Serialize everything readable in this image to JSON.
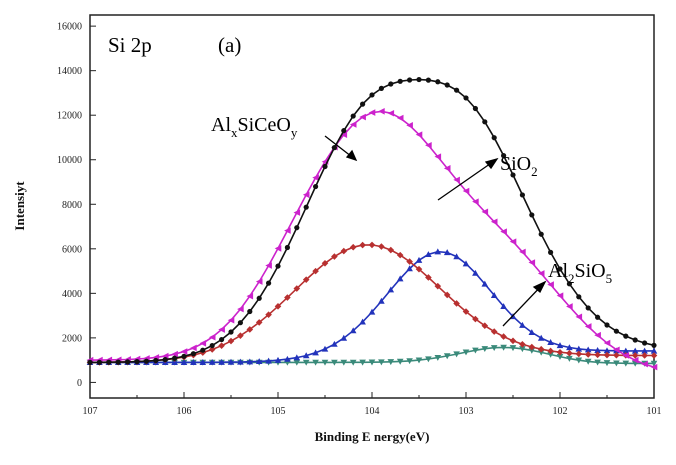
{
  "chart_data": {
    "type": "line",
    "title": "",
    "panel_title": "Si 2p",
    "panel_label": "(a)",
    "xlabel": "Binding E nergy(eV)",
    "ylabel": "Intensiyt",
    "xlim": [
      107,
      101
    ],
    "x_reversed": true,
    "ylim": [
      -700,
      16500
    ],
    "x_ticks": [
      107,
      106,
      105,
      104,
      103,
      102,
      101
    ],
    "y_ticks": [
      0,
      2000,
      4000,
      6000,
      8000,
      10000,
      12000,
      14000,
      16000
    ],
    "grid": false,
    "legend": "none",
    "x": [
      107.0,
      106.9,
      106.8,
      106.7,
      106.6,
      106.5,
      106.4,
      106.3,
      106.2,
      106.1,
      106.0,
      105.9,
      105.8,
      105.7,
      105.6,
      105.5,
      105.4,
      105.3,
      105.2,
      105.1,
      105.0,
      104.9,
      104.8,
      104.7,
      104.6,
      104.5,
      104.4,
      104.3,
      104.2,
      104.1,
      104.0,
      103.9,
      103.8,
      103.7,
      103.6,
      103.5,
      103.4,
      103.3,
      103.2,
      103.1,
      103.0,
      102.9,
      102.8,
      102.7,
      102.6,
      102.5,
      102.4,
      102.3,
      102.2,
      102.1,
      102.0,
      101.9,
      101.8,
      101.7,
      101.6,
      101.5,
      101.4,
      101.3,
      101.2,
      101.1,
      101.0
    ],
    "series": [
      {
        "key": "raw",
        "color": "#111111",
        "marker": "circle",
        "values": [
          900,
          903,
          907,
          912,
          921,
          934,
          954,
          983,
          1025,
          1086,
          1171,
          1289,
          1447,
          1656,
          1925,
          2264,
          2682,
          3185,
          3778,
          4460,
          5224,
          6059,
          6949,
          7870,
          8796,
          9697,
          10543,
          11306,
          11962,
          12497,
          12909,
          13205,
          13402,
          13521,
          13582,
          13600,
          13576,
          13501,
          13357,
          13123,
          12776,
          12302,
          11703,
          10989,
          10185,
          9317,
          8419,
          7522,
          6655,
          5840,
          5094,
          4427,
          3844,
          3344,
          2925,
          2579,
          2300,
          2078,
          1904,
          1769,
          1667
        ]
      },
      {
        "key": "fit",
        "color": "#cc22cc",
        "marker": "triangle-left",
        "values": [
          1000,
          1004,
          1010,
          1018,
          1030,
          1050,
          1080,
          1122,
          1183,
          1269,
          1387,
          1546,
          1758,
          2030,
          2374,
          2794,
          3294,
          3874,
          4529,
          5248,
          6017,
          6817,
          7627,
          8426,
          9194,
          9912,
          10562,
          11125,
          11583,
          11918,
          12117,
          12173,
          12088,
          11872,
          11544,
          11127,
          10650,
          10138,
          9614,
          9096,
          8596,
          8118,
          7660,
          7214,
          6771,
          6322,
          5860,
          5383,
          4892,
          4394,
          3896,
          3410,
          2945,
          2513,
          2120,
          1770,
          1467,
          1210,
          997,
          824,
          686
        ]
      },
      {
        "key": "AlxSiCeOy",
        "color": "#b83030",
        "marker": "diamond",
        "values": [
          900,
          902,
          906,
          913,
          922,
          935,
          955,
          982,
          1019,
          1070,
          1138,
          1226,
          1338,
          1479,
          1650,
          1857,
          2100,
          2379,
          2694,
          3042,
          3417,
          3811,
          4215,
          4615,
          4998,
          5349,
          5653,
          5898,
          6072,
          6166,
          6176,
          6101,
          5945,
          5716,
          5425,
          5086,
          4713,
          4323,
          3929,
          3545,
          3182,
          2846,
          2546,
          2282,
          2057,
          1868,
          1713,
          1589,
          1490,
          1413,
          1355,
          1311,
          1279,
          1256,
          1239,
          1228,
          1220,
          1215,
          1212,
          1210,
          1209
        ]
      },
      {
        "key": "SiO2",
        "color": "#2233bb",
        "marker": "triangle-up",
        "values": [
          900,
          900,
          900,
          900,
          900,
          900,
          900,
          900,
          900,
          901,
          901,
          902,
          903,
          905,
          907,
          912,
          918,
          928,
          943,
          965,
          998,
          1045,
          1113,
          1206,
          1333,
          1501,
          1718,
          1991,
          2324,
          2717,
          3164,
          3652,
          4160,
          4658,
          5113,
          5487,
          5748,
          5869,
          5836,
          5650,
          5330,
          4907,
          4421,
          3911,
          3415,
          2962,
          2569,
          2245,
          1990,
          1799,
          1661,
          1567,
          1504,
          1465,
          1441,
          1428,
          1420,
          1416,
          1414,
          1413,
          1413
        ]
      },
      {
        "key": "Al2SiO5",
        "color": "#3a8a7a",
        "marker": "triangle-down",
        "values": [
          900,
          900,
          900,
          900,
          900,
          900,
          900,
          900,
          900,
          900,
          900,
          900,
          900,
          900,
          900,
          900,
          900,
          900,
          900,
          900,
          900,
          900,
          900,
          900,
          900,
          900,
          900,
          901,
          902,
          904,
          908,
          914,
          925,
          942,
          967,
          1003,
          1052,
          1114,
          1189,
          1273,
          1361,
          1444,
          1512,
          1557,
          1572,
          1556,
          1509,
          1438,
          1349,
          1253,
          1158,
          1071,
          999,
          944,
          905,
          880,
          866,
          859,
          856,
          854,
          854
        ]
      }
    ]
  },
  "annotations": {
    "alx": {
      "main": "Al",
      "s1": "x",
      "mid": "SiCeO",
      "s2": "y"
    },
    "sio2": {
      "main": "SiO",
      "s1": "2"
    },
    "al2sio5": {
      "main": "Al",
      "s1": "2",
      "mid": "SiO",
      "s2": "5"
    }
  },
  "colors": {
    "axis": "#222222",
    "arrow": "#000000"
  }
}
